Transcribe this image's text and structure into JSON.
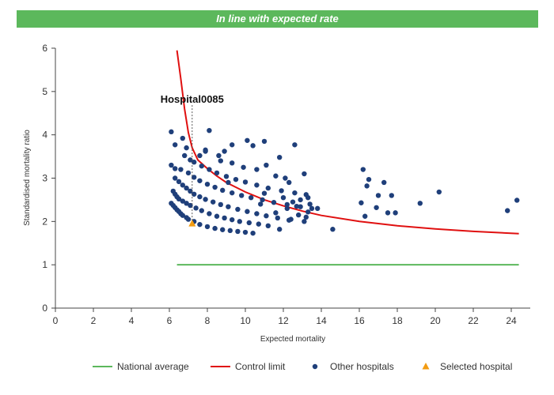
{
  "banner": {
    "text": "In line with expected rate"
  },
  "colors": {
    "banner": "#5cb85c",
    "national_average": "#5cb85c",
    "control_limit": "#e01010",
    "other_hospitals": "#1f3f7a",
    "selected_hospital": "#f39c12"
  },
  "chart_data": {
    "type": "scatter",
    "title": "",
    "xlabel": "Expected mortality",
    "ylabel": "Standardised mortality ratio",
    "xlim": [
      0,
      25
    ],
    "ylim": [
      0,
      6
    ],
    "xticks": [
      "0",
      "2",
      "4",
      "6",
      "8",
      "10",
      "12",
      "14",
      "16",
      "18",
      "20",
      "22",
      "24"
    ],
    "yticks": [
      "0",
      "1",
      "2",
      "3",
      "4",
      "5",
      "6"
    ],
    "grid": false,
    "legend_position": "bottom",
    "legend": [
      "National average",
      "Control limit",
      "Other hospitals",
      "Selected hospital"
    ],
    "national_average": {
      "name": "National average",
      "y": 1,
      "x_range": [
        6.4,
        24.4
      ]
    },
    "control_limit": {
      "name": "Control limit",
      "x": [
        6.4,
        6.6,
        6.8,
        7.0,
        7.2,
        7.5,
        8.0,
        8.5,
        9.0,
        10,
        11,
        12,
        13,
        14,
        16,
        18,
        20,
        22,
        24.4
      ],
      "y": [
        5.95,
        5.3,
        4.6,
        4.05,
        3.7,
        3.42,
        3.22,
        3.05,
        2.9,
        2.68,
        2.5,
        2.36,
        2.24,
        2.14,
        2.0,
        1.9,
        1.83,
        1.77,
        1.72
      ]
    },
    "selected_hospital": {
      "name": "Selected hospital",
      "label": "Hospital0085",
      "x": 7.2,
      "y": 1.95
    },
    "other_hospitals": {
      "name": "Other hospitals",
      "points": [
        [
          6.1,
          2.42
        ],
        [
          6.2,
          2.37
        ],
        [
          6.3,
          2.32
        ],
        [
          6.4,
          2.27
        ],
        [
          6.5,
          2.23
        ],
        [
          6.6,
          2.18
        ],
        [
          6.7,
          2.14
        ],
        [
          6.9,
          2.09
        ],
        [
          7.0,
          2.05
        ],
        [
          7.3,
          2.0
        ],
        [
          7.6,
          1.93
        ],
        [
          8.0,
          1.88
        ],
        [
          8.4,
          1.84
        ],
        [
          8.8,
          1.81
        ],
        [
          9.2,
          1.79
        ],
        [
          9.6,
          1.77
        ],
        [
          10.0,
          1.75
        ],
        [
          10.4,
          1.73
        ],
        [
          6.2,
          2.7
        ],
        [
          6.3,
          2.63
        ],
        [
          6.4,
          2.57
        ],
        [
          6.5,
          2.52
        ],
        [
          6.7,
          2.47
        ],
        [
          6.9,
          2.42
        ],
        [
          7.1,
          2.37
        ],
        [
          7.4,
          2.31
        ],
        [
          7.7,
          2.25
        ],
        [
          8.1,
          2.18
        ],
        [
          8.5,
          2.12
        ],
        [
          8.9,
          2.08
        ],
        [
          9.3,
          2.04
        ],
        [
          9.7,
          2.0
        ],
        [
          10.2,
          1.97
        ],
        [
          10.7,
          1.94
        ],
        [
          11.2,
          1.9
        ],
        [
          6.3,
          3.0
        ],
        [
          6.5,
          2.92
        ],
        [
          6.7,
          2.84
        ],
        [
          6.9,
          2.77
        ],
        [
          7.1,
          2.7
        ],
        [
          7.3,
          2.63
        ],
        [
          7.6,
          2.57
        ],
        [
          7.9,
          2.51
        ],
        [
          8.3,
          2.45
        ],
        [
          8.7,
          2.39
        ],
        [
          9.1,
          2.34
        ],
        [
          9.6,
          2.28
        ],
        [
          10.1,
          2.23
        ],
        [
          10.6,
          2.18
        ],
        [
          11.1,
          2.13
        ],
        [
          11.7,
          2.08
        ],
        [
          12.3,
          2.03
        ],
        [
          6.6,
          3.2
        ],
        [
          7.0,
          3.12
        ],
        [
          7.3,
          3.02
        ],
        [
          7.6,
          2.94
        ],
        [
          8.0,
          2.86
        ],
        [
          8.4,
          2.79
        ],
        [
          8.8,
          2.72
        ],
        [
          9.3,
          2.66
        ],
        [
          9.8,
          2.6
        ],
        [
          10.3,
          2.55
        ],
        [
          10.9,
          2.5
        ],
        [
          11.5,
          2.44
        ],
        [
          12.2,
          2.39
        ],
        [
          12.9,
          2.34
        ],
        [
          13.5,
          2.3
        ],
        [
          7.3,
          3.37
        ],
        [
          7.7,
          3.28
        ],
        [
          8.1,
          3.2
        ],
        [
          8.5,
          3.12
        ],
        [
          9.0,
          3.04
        ],
        [
          9.5,
          2.97
        ],
        [
          10.0,
          2.91
        ],
        [
          10.6,
          2.84
        ],
        [
          11.2,
          2.77
        ],
        [
          11.9,
          2.71
        ],
        [
          12.6,
          2.66
        ],
        [
          13.2,
          2.62
        ],
        [
          6.1,
          3.3
        ],
        [
          6.3,
          3.22
        ],
        [
          6.8,
          3.52
        ],
        [
          7.1,
          3.42
        ],
        [
          7.9,
          3.65
        ],
        [
          8.7,
          3.4
        ],
        [
          9.3,
          3.35
        ],
        [
          9.9,
          3.25
        ],
        [
          10.6,
          3.2
        ],
        [
          11.1,
          3.3
        ],
        [
          11.6,
          3.05
        ],
        [
          12.1,
          3.0
        ],
        [
          13.1,
          3.1
        ],
        [
          12.3,
          2.9
        ],
        [
          12.0,
          2.55
        ],
        [
          11.0,
          2.65
        ],
        [
          12.5,
          2.45
        ],
        [
          6.1,
          4.07
        ],
        [
          6.7,
          3.92
        ],
        [
          6.3,
          3.77
        ],
        [
          6.9,
          3.7
        ],
        [
          8.1,
          4.1
        ],
        [
          7.9,
          3.62
        ],
        [
          8.6,
          3.52
        ],
        [
          8.9,
          3.62
        ],
        [
          9.3,
          3.77
        ],
        [
          10.1,
          3.87
        ],
        [
          10.4,
          3.75
        ],
        [
          11.0,
          3.85
        ],
        [
          12.6,
          3.77
        ],
        [
          11.8,
          3.48
        ],
        [
          7.6,
          3.52
        ],
        [
          9.1,
          2.9
        ],
        [
          10.8,
          2.4
        ],
        [
          11.6,
          2.2
        ],
        [
          12.2,
          2.3
        ],
        [
          12.8,
          2.15
        ],
        [
          13.2,
          2.1
        ],
        [
          12.4,
          2.05
        ],
        [
          11.8,
          1.82
        ],
        [
          12.9,
          2.5
        ],
        [
          13.3,
          2.55
        ],
        [
          13.1,
          2.0
        ],
        [
          13.3,
          2.22
        ],
        [
          13.8,
          2.3
        ],
        [
          14.6,
          1.82
        ],
        [
          12.7,
          2.35
        ],
        [
          13.4,
          2.4
        ],
        [
          16.2,
          3.2
        ],
        [
          16.5,
          2.97
        ],
        [
          16.4,
          2.82
        ],
        [
          17.3,
          2.9
        ],
        [
          17.0,
          2.6
        ],
        [
          17.7,
          2.6
        ],
        [
          16.1,
          2.43
        ],
        [
          16.3,
          2.12
        ],
        [
          16.9,
          2.32
        ],
        [
          17.5,
          2.2
        ],
        [
          17.9,
          2.2
        ],
        [
          19.2,
          2.42
        ],
        [
          20.2,
          2.68
        ],
        [
          23.8,
          2.25
        ],
        [
          24.3,
          2.49
        ]
      ]
    }
  }
}
